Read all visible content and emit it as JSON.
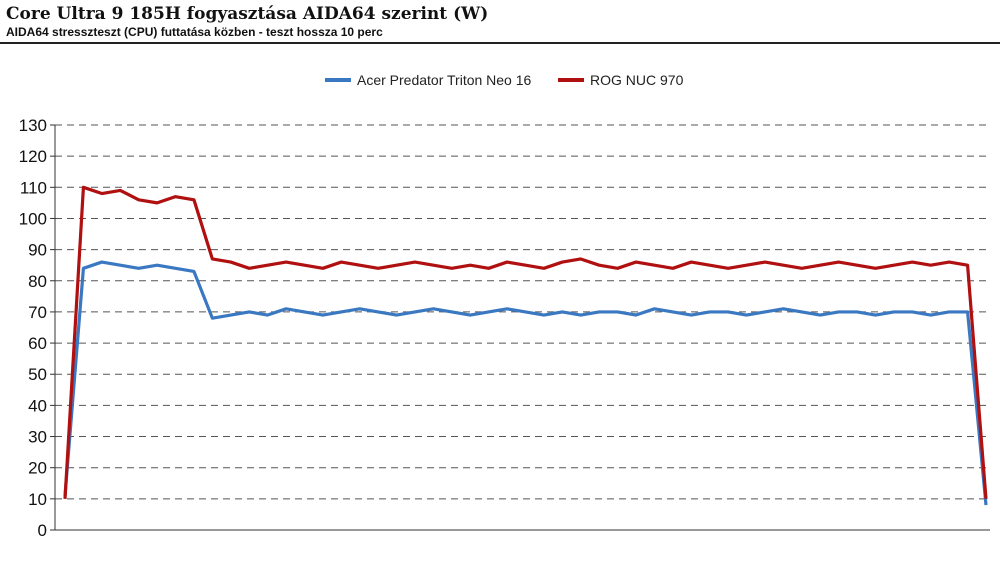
{
  "header": {
    "title": "Core Ultra 9 185H fogyasztása AIDA64 szerint (W)",
    "subtitle": "AIDA64 stresszteszt (CPU) futtatása közben - teszt hossza 10 perc"
  },
  "legend": {
    "position": "top-center",
    "items": [
      {
        "label": "Acer Predator Triton Neo 16",
        "color": "#3a78c2"
      },
      {
        "label": "ROG NUC 970",
        "color": "#b01010"
      }
    ]
  },
  "chart_data": {
    "type": "line",
    "title": "Core Ultra 9 185H fogyasztása AIDA64 szerint (W)",
    "subtitle": "AIDA64 stresszteszt (CPU) futtatása közben - teszt hossza 10 perc",
    "xlabel": "",
    "ylabel": "",
    "ylim": [
      0,
      130
    ],
    "yticks": [
      0,
      10,
      20,
      30,
      40,
      50,
      60,
      70,
      80,
      90,
      100,
      110,
      120,
      130
    ],
    "grid": "horizontal dashed",
    "legend_position": "top-center",
    "x": [
      0,
      2,
      4,
      6,
      8,
      10,
      12,
      14,
      16,
      18,
      20,
      22,
      24,
      26,
      28,
      30,
      32,
      34,
      36,
      38,
      40,
      42,
      44,
      46,
      48,
      50,
      52,
      54,
      56,
      58,
      60,
      62,
      64,
      66,
      68,
      70,
      72,
      74,
      76,
      78,
      80,
      82,
      84,
      86,
      88,
      90,
      92,
      94,
      96,
      98,
      100
    ],
    "series": [
      {
        "name": "Acer Predator Triton Neo 16",
        "color": "#3a78c2",
        "values": [
          11,
          84,
          86,
          85,
          84,
          85,
          84,
          83,
          68,
          69,
          70,
          69,
          71,
          70,
          69,
          70,
          71,
          70,
          69,
          70,
          71,
          70,
          69,
          70,
          71,
          70,
          69,
          70,
          69,
          70,
          70,
          69,
          71,
          70,
          69,
          70,
          70,
          69,
          70,
          71,
          70,
          69,
          70,
          70,
          69,
          70,
          70,
          69,
          70,
          70,
          8
        ]
      },
      {
        "name": "ROG NUC 970",
        "color": "#b01010",
        "values": [
          10,
          110,
          108,
          109,
          106,
          105,
          107,
          106,
          87,
          86,
          84,
          85,
          86,
          85,
          84,
          86,
          85,
          84,
          85,
          86,
          85,
          84,
          85,
          84,
          86,
          85,
          84,
          86,
          87,
          85,
          84,
          86,
          85,
          84,
          86,
          85,
          84,
          85,
          86,
          85,
          84,
          85,
          86,
          85,
          84,
          85,
          86,
          85,
          86,
          85,
          10
        ]
      }
    ]
  }
}
